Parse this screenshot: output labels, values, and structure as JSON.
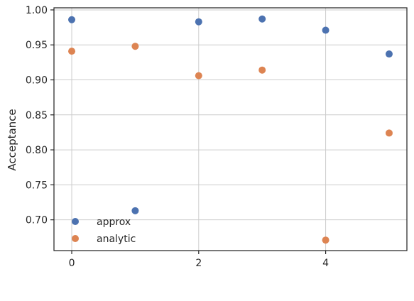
{
  "chart_data": {
    "type": "scatter",
    "title": "",
    "xlabel": "",
    "ylabel": "Acceptance",
    "xlim": [
      -0.28,
      5.28
    ],
    "ylim": [
      0.656,
      1.003
    ],
    "xticks": [
      0,
      2,
      4
    ],
    "yticks": [
      0.7,
      0.75,
      0.8,
      0.85,
      0.9,
      0.95,
      1.0
    ],
    "xtick_labels": [
      "0",
      "2",
      "4"
    ],
    "ytick_labels": [
      "0.70",
      "0.75",
      "0.80",
      "0.85",
      "0.90",
      "0.95",
      "1.00"
    ],
    "grid": true,
    "legend": {
      "position": "lower-left"
    },
    "series": [
      {
        "name": "approx",
        "color": "#4c72b0",
        "x": [
          0,
          1,
          2,
          3,
          4,
          5
        ],
        "y": [
          0.986,
          0.713,
          0.983,
          0.987,
          0.971,
          0.937
        ]
      },
      {
        "name": "analytic",
        "color": "#dd8452",
        "x": [
          0,
          1,
          2,
          3,
          4,
          5
        ],
        "y": [
          0.941,
          0.948,
          0.906,
          0.914,
          0.671,
          0.824
        ]
      }
    ]
  }
}
